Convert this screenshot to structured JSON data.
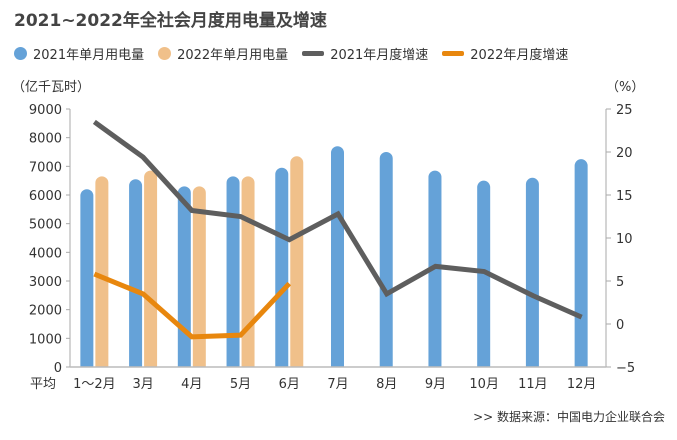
{
  "chart_data": {
    "type": "bar",
    "title": "2021~2022年全社会月度用电量及增速",
    "categories": [
      "1～2月",
      "3月",
      "4月",
      "5月",
      "6月",
      "7月",
      "8月",
      "9月",
      "10月",
      "11月",
      "12月"
    ],
    "x_prefix_label": "平均",
    "left_axis": {
      "label": "（亿千瓦时）",
      "range": [
        0,
        9000
      ],
      "ticks": [
        0,
        1000,
        2000,
        3000,
        4000,
        5000,
        6000,
        7000,
        8000,
        9000
      ]
    },
    "right_axis": {
      "label": "（%）",
      "range": [
        -5,
        25
      ],
      "ticks": [
        -5,
        0,
        5,
        10,
        15,
        20,
        25
      ]
    },
    "series": [
      {
        "name": "2021年单月用电量",
        "type": "bar",
        "axis": "left",
        "color": "#65a2d8",
        "values": [
          6200,
          6550,
          6300,
          6650,
          6950,
          7700,
          7500,
          6850,
          6500,
          6600,
          7250
        ]
      },
      {
        "name": "2022年单月用电量",
        "type": "bar",
        "axis": "left",
        "color": "#f0c08a",
        "values": [
          6650,
          6850,
          6300,
          6650,
          7350,
          null,
          null,
          null,
          null,
          null,
          null
        ]
      },
      {
        "name": "2021年月度增速",
        "type": "line",
        "axis": "right",
        "color": "#5e5e5e",
        "values": [
          23.5,
          19.4,
          13.2,
          12.5,
          9.8,
          12.8,
          3.5,
          6.7,
          6.1,
          3.3,
          0.8
        ]
      },
      {
        "name": "2022年月度增速",
        "type": "line",
        "axis": "right",
        "color": "#e8870e",
        "values": [
          5.8,
          3.5,
          -1.5,
          -1.3,
          4.7,
          null,
          null,
          null,
          null,
          null,
          null
        ]
      }
    ],
    "legend_position": "top",
    "source": ">>  数据来源：中国电力企业联合会"
  }
}
